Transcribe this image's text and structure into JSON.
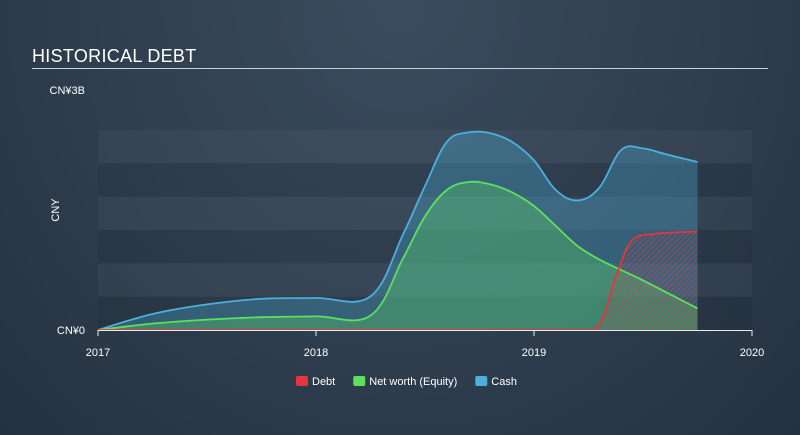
{
  "title": "HISTORICAL DEBT",
  "chart_data": {
    "type": "area",
    "title": "HISTORICAL DEBT",
    "ylabel": "CNY",
    "xlabel": "",
    "ylim": [
      0,
      3
    ],
    "xlim": [
      2017.0,
      2020.0
    ],
    "y_tick_labels": [
      {
        "value": 3,
        "label": "CN¥3B"
      },
      {
        "value": 0,
        "label": "CN¥0"
      }
    ],
    "x_ticks": [
      2017,
      2018,
      2019,
      2020
    ],
    "x_tick_labels": [
      "2017",
      "2018",
      "2019",
      "2020"
    ],
    "grid": true,
    "legend_position": "bottom-center",
    "series": [
      {
        "name": "Cash",
        "color": "#4bb0dc",
        "x": [
          2017.0,
          2017.25,
          2017.5,
          2017.75,
          2018.0,
          2018.25,
          2018.4,
          2018.5,
          2018.6,
          2018.7,
          2018.8,
          2018.9,
          2019.0,
          2019.1,
          2019.2,
          2019.3,
          2019.4,
          2019.5,
          2019.6,
          2019.75
        ],
        "values": [
          0.0,
          0.2,
          0.32,
          0.39,
          0.4,
          0.42,
          1.2,
          1.8,
          2.35,
          2.47,
          2.46,
          2.35,
          2.12,
          1.75,
          1.62,
          1.78,
          2.25,
          2.27,
          2.2,
          2.1
        ]
      },
      {
        "name": "Net worth (Equity)",
        "color": "#5ee05e",
        "x": [
          2017.0,
          2017.25,
          2017.5,
          2017.75,
          2018.0,
          2018.25,
          2018.4,
          2018.5,
          2018.6,
          2018.7,
          2018.8,
          2018.9,
          2019.0,
          2019.1,
          2019.2,
          2019.3,
          2019.4,
          2019.5,
          2019.6,
          2019.75
        ],
        "values": [
          0.0,
          0.08,
          0.13,
          0.16,
          0.17,
          0.18,
          0.9,
          1.42,
          1.75,
          1.85,
          1.82,
          1.72,
          1.55,
          1.3,
          1.05,
          0.88,
          0.75,
          0.62,
          0.48,
          0.27
        ]
      },
      {
        "name": "Debt",
        "color": "#e8343c",
        "x": [
          2017.0,
          2017.5,
          2018.0,
          2018.5,
          2019.0,
          2019.2,
          2019.27,
          2019.32,
          2019.38,
          2019.45,
          2019.55,
          2019.65,
          2019.75
        ],
        "values": [
          0.0,
          0.0,
          0.0,
          0.0,
          0.0,
          0.0,
          0.0,
          0.18,
          0.7,
          1.12,
          1.2,
          1.22,
          1.23
        ]
      }
    ]
  }
}
